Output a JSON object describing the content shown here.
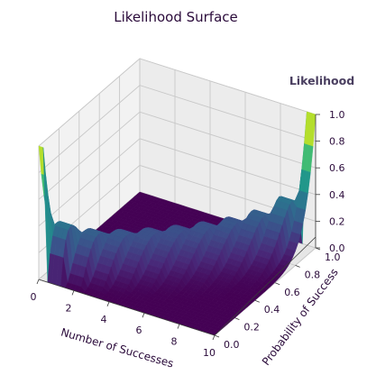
{
  "chart_data": {
    "type": "surface",
    "title": "Likelihood Surface",
    "xlabel": "Number of Successes",
    "ylabel": "Probability of Success",
    "zlabel": "Likelihood",
    "xlim": [
      0,
      10
    ],
    "ylim": [
      0,
      1
    ],
    "zlim": [
      0,
      1
    ],
    "x_ticks": [
      "0",
      "2",
      "4",
      "6",
      "8",
      "10"
    ],
    "y_ticks": [
      "0.0",
      "0.2",
      "0.4",
      "0.6",
      "0.8",
      "1.0"
    ],
    "z_ticks": [
      "0.0",
      "0.2",
      "0.4",
      "0.6",
      "0.8",
      "1.0"
    ],
    "x_tick_values": [
      0,
      2,
      4,
      6,
      8,
      10
    ],
    "y_tick_values": [
      0,
      0.2,
      0.4,
      0.6,
      0.8,
      1.0
    ],
    "z_tick_values": [
      0,
      0.2,
      0.4,
      0.6,
      0.8,
      1.0
    ],
    "n_trials": 10,
    "colormap": "viridis",
    "grid": true
  }
}
